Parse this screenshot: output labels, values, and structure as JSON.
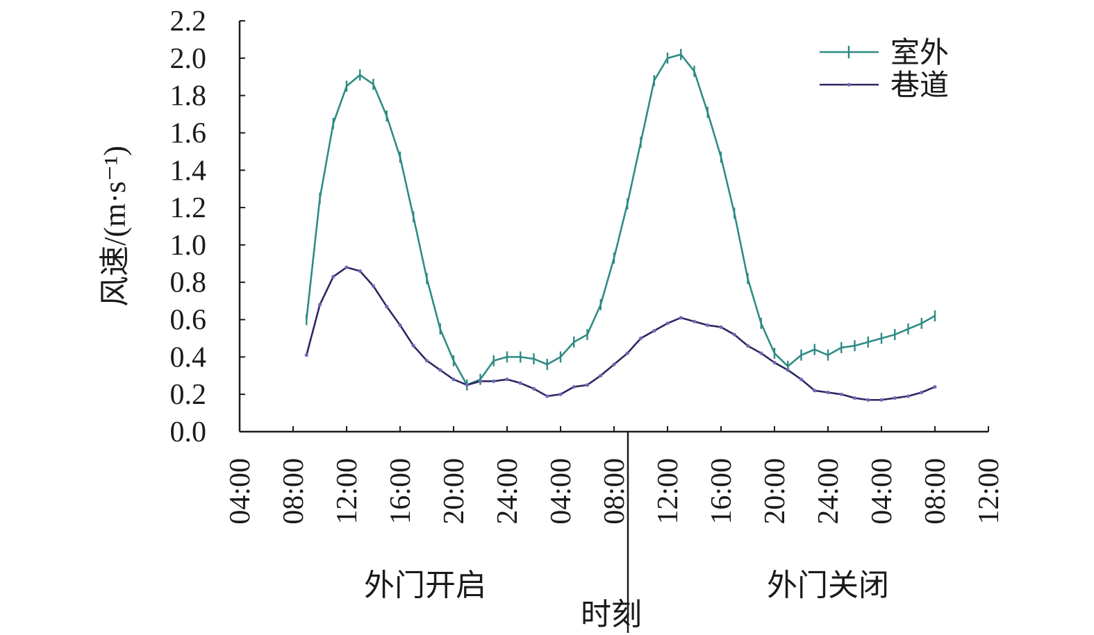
{
  "chart_data": {
    "type": "line",
    "ylabel": "风速/(m·s⁻¹)",
    "xlabel": "时刻",
    "ylim": [
      0,
      2.2
    ],
    "yticks": [
      "0.0",
      "0.2",
      "0.4",
      "0.6",
      "0.8",
      "1.0",
      "1.2",
      "1.4",
      "1.6",
      "1.8",
      "2.0",
      "2.2"
    ],
    "xticks": [
      "04:00",
      "08:00",
      "12:00",
      "16:00",
      "20:00",
      "24:00",
      "04:00",
      "08:00",
      "12:00",
      "16:00",
      "20:00",
      "24:00",
      "04:00",
      "08:00",
      "12:00"
    ],
    "xlim_hours": [
      0,
      56
    ],
    "group_labels": [
      "外门开启",
      "外门关闭"
    ],
    "grid": false,
    "legend_position": "top-right",
    "series": [
      {
        "name": "室外",
        "color": "#2e8b84",
        "marker": "vertical-tick",
        "x": [
          5,
          6,
          7,
          8,
          9,
          10,
          11,
          12,
          13,
          14,
          15,
          16,
          17,
          18,
          19,
          20,
          21,
          22,
          23,
          24,
          25,
          26,
          27,
          28,
          29,
          30,
          31,
          32,
          33,
          34,
          35,
          36,
          37,
          38,
          39,
          40,
          41,
          42,
          43,
          44,
          45,
          46,
          47,
          48,
          49,
          50,
          51,
          52
        ],
        "values": [
          0.6,
          1.25,
          1.65,
          1.85,
          1.91,
          1.86,
          1.69,
          1.47,
          1.15,
          0.82,
          0.55,
          0.38,
          0.25,
          0.28,
          0.38,
          0.4,
          0.4,
          0.39,
          0.36,
          0.4,
          0.48,
          0.52,
          0.68,
          0.93,
          1.22,
          1.55,
          1.88,
          2.0,
          2.02,
          1.93,
          1.71,
          1.47,
          1.17,
          0.82,
          0.58,
          0.42,
          0.35,
          0.41,
          0.44,
          0.41,
          0.45,
          0.46,
          0.48,
          0.5,
          0.52,
          0.55,
          0.58,
          0.62
        ]
      },
      {
        "name": "巷道",
        "color": "#2b2760",
        "marker": "dot",
        "x": [
          5,
          6,
          7,
          8,
          9,
          10,
          11,
          12,
          13,
          14,
          15,
          16,
          17,
          18,
          19,
          20,
          21,
          22,
          23,
          24,
          25,
          26,
          27,
          28,
          29,
          30,
          31,
          32,
          33,
          34,
          35,
          36,
          37,
          38,
          39,
          40,
          41,
          42,
          43,
          44,
          45,
          46,
          47,
          48,
          49,
          50,
          51,
          52
        ],
        "values": [
          0.41,
          0.68,
          0.83,
          0.88,
          0.86,
          0.78,
          0.67,
          0.57,
          0.46,
          0.38,
          0.33,
          0.28,
          0.25,
          0.27,
          0.27,
          0.28,
          0.26,
          0.23,
          0.19,
          0.2,
          0.24,
          0.25,
          0.3,
          0.36,
          0.42,
          0.5,
          0.54,
          0.58,
          0.61,
          0.59,
          0.57,
          0.56,
          0.52,
          0.46,
          0.42,
          0.37,
          0.33,
          0.28,
          0.22,
          0.21,
          0.2,
          0.18,
          0.17,
          0.17,
          0.18,
          0.19,
          0.21,
          0.24
        ]
      }
    ]
  }
}
